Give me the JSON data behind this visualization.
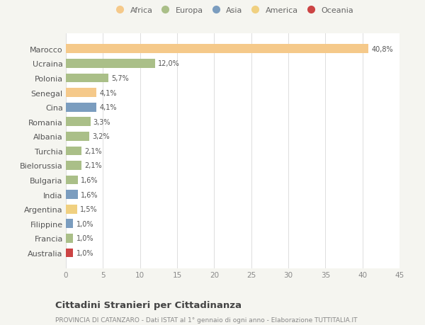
{
  "countries": [
    "Marocco",
    "Ucraina",
    "Polonia",
    "Senegal",
    "Cina",
    "Romania",
    "Albania",
    "Turchia",
    "Bielorussia",
    "Bulgaria",
    "India",
    "Argentina",
    "Filippine",
    "Francia",
    "Australia"
  ],
  "values": [
    40.8,
    12.0,
    5.7,
    4.1,
    4.1,
    3.3,
    3.2,
    2.1,
    2.1,
    1.6,
    1.6,
    1.5,
    1.0,
    1.0,
    1.0
  ],
  "labels": [
    "40,8%",
    "12,0%",
    "5,7%",
    "4,1%",
    "4,1%",
    "3,3%",
    "3,2%",
    "2,1%",
    "2,1%",
    "1,6%",
    "1,6%",
    "1,5%",
    "1,0%",
    "1,0%",
    "1,0%"
  ],
  "colors": [
    "#F5C98A",
    "#AABF88",
    "#AABF88",
    "#F5C98A",
    "#7B9DBF",
    "#AABF88",
    "#AABF88",
    "#AABF88",
    "#AABF88",
    "#AABF88",
    "#7B9DBF",
    "#F0D080",
    "#7B9DBF",
    "#AABF88",
    "#CC4444"
  ],
  "legend_labels": [
    "Africa",
    "Europa",
    "Asia",
    "America",
    "Oceania"
  ],
  "legend_colors": [
    "#F5C98A",
    "#AABF88",
    "#7B9DBF",
    "#F0D080",
    "#CC4444"
  ],
  "xlim": [
    0,
    45
  ],
  "xticks": [
    0,
    5,
    10,
    15,
    20,
    25,
    30,
    35,
    40,
    45
  ],
  "title": "Cittadini Stranieri per Cittadinanza",
  "subtitle": "PROVINCIA DI CATANZARO - Dati ISTAT al 1° gennaio di ogni anno - Elaborazione TUTTITALIA.IT",
  "bg_color": "#F5F5F0",
  "bar_bg_color": "#FFFFFF",
  "grid_color": "#DDDDDD"
}
